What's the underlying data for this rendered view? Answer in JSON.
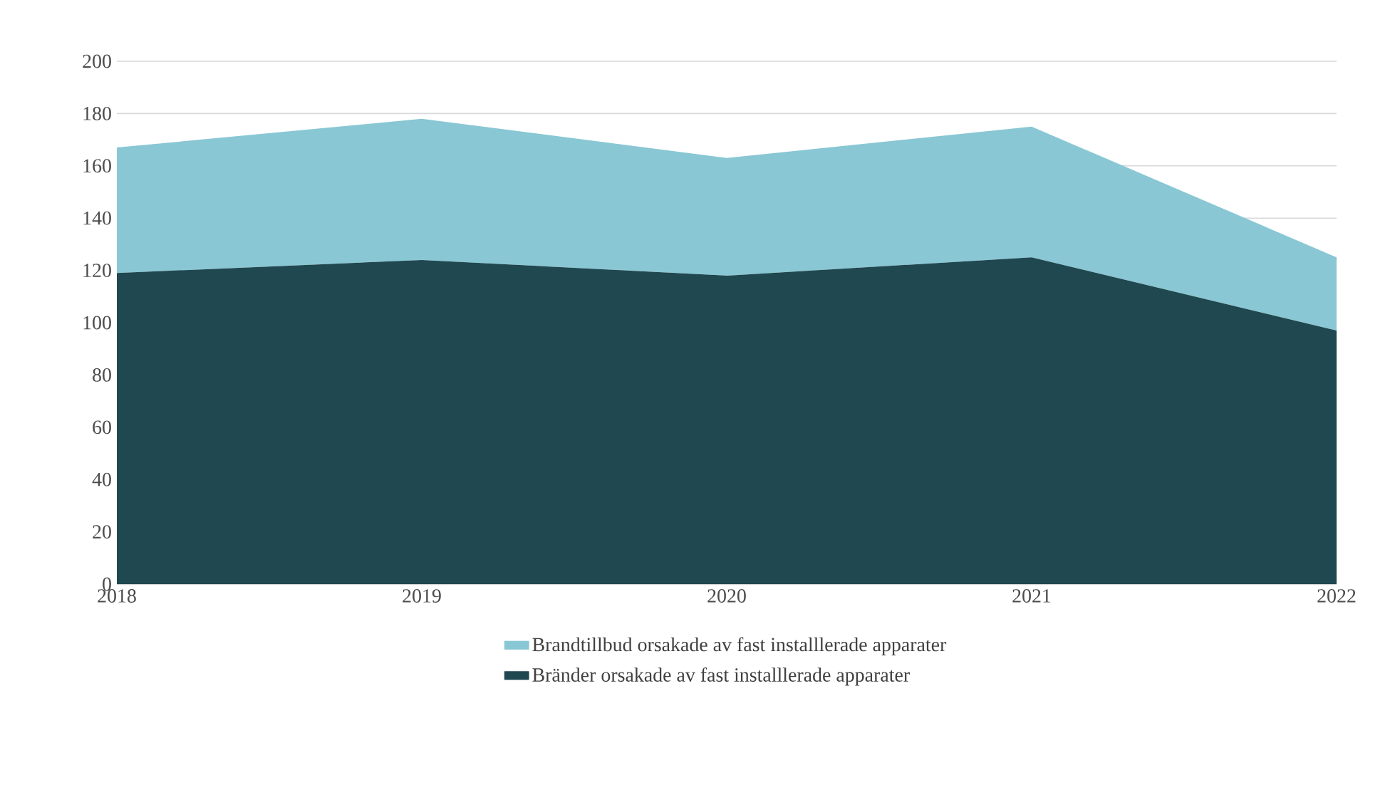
{
  "chart_data": {
    "type": "area",
    "stacked": true,
    "x": [
      2018,
      2019,
      2020,
      2021,
      2022
    ],
    "xlim": [
      2018,
      2022
    ],
    "xticks": [
      2018,
      2019,
      2020,
      2021,
      2022
    ],
    "ylim": [
      0,
      200
    ],
    "yticks": [
      0,
      20,
      40,
      60,
      80,
      100,
      120,
      140,
      160,
      180,
      200
    ],
    "grid": "y",
    "legend": "bottom",
    "series": [
      {
        "name": "Bränder orsakade av fast installlerade apparater",
        "color": "#1f4851",
        "values": [
          119,
          124,
          118,
          125,
          97
        ]
      },
      {
        "name": "Brandtillbud orsakade av fast installlerade apparater",
        "color": "#89c7d4",
        "values": [
          48,
          54,
          45,
          50,
          28
        ]
      }
    ]
  }
}
